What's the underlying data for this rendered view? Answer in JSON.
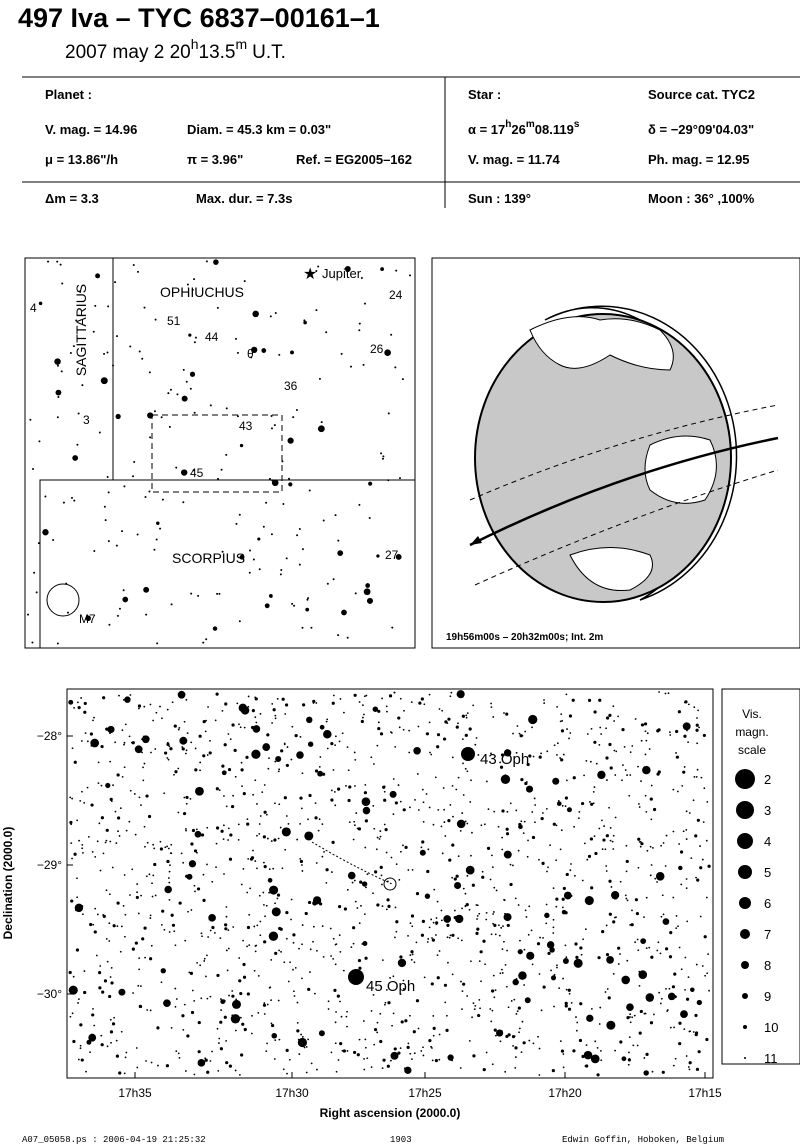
{
  "header": {
    "title": "497 Iva  –  TYC 6837–00161–1",
    "date": {
      "day": "2007 may  2  20",
      "h": "h",
      "min": "13.5",
      "m": "m",
      "tz": "U.T."
    }
  },
  "info": {
    "planet": {
      "heading": "Planet :",
      "vmag": "V. mag. = 14.96",
      "diam": "Diam. = 45.3 km = 0.03\"",
      "mu": "μ =  13.86\"/h",
      "pi": "π =  3.96\"",
      "ref": "Ref. = EG2005–162"
    },
    "star": {
      "heading": "Star :",
      "source": "Source cat.  TYC2",
      "alpha": {
        "a": "α = 17",
        "h": "h",
        "b": "26",
        "m": "m",
        "c": "08.119",
        "s": "s"
      },
      "delta": "δ = −29°09'04.03\"",
      "vmag": "V. mag. = 11.74",
      "phmag": "Ph. mag. = 12.95"
    },
    "bottom": {
      "dm": "Δm = 3.3",
      "maxdur": "Max. dur. = 7.3s",
      "sun": "Sun : 139°",
      "moon": "Moon :  36° ,100%"
    }
  },
  "finder": {
    "constellations": [
      "SAGITTARIUS",
      "OPHIUCHUS",
      "SCORPIUS"
    ],
    "planet": "Jupiter",
    "labels": [
      "4",
      "24",
      "51",
      "44",
      "θ",
      "26",
      "36",
      "3",
      "43",
      "45",
      "27",
      "M7"
    ]
  },
  "globe": {
    "caption": "19h56m00s – 20h32m00s; Int.  2m"
  },
  "chart": {
    "yticks": [
      "−28°",
      "−29°",
      "−30°"
    ],
    "xticks": [
      "17h35",
      "17h30",
      "17h25",
      "17h20",
      "17h15"
    ],
    "ylabel": "Declination (2000.0)",
    "xlabel": "Right ascension (2000.0)",
    "stars": [
      "43 Oph",
      "45 Oph"
    ],
    "scale": {
      "title": [
        "Vis.",
        "magn.",
        "scale"
      ],
      "mags": [
        "2",
        "3",
        "4",
        "5",
        "6",
        "7",
        "8",
        "9",
        "10",
        "11"
      ]
    }
  },
  "footer": {
    "file": "A07_05058.ps : 2006-04-19 21:25:32",
    "num": "1903",
    "author": "Edwin Goffin, Hoboken, Belgium"
  }
}
